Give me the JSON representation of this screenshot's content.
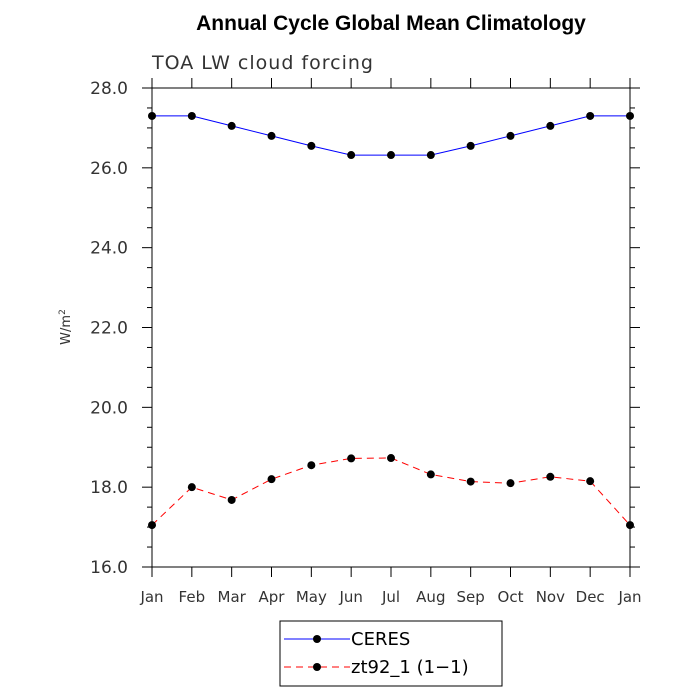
{
  "chart_data": {
    "type": "line",
    "title": "Annual Cycle Global Mean Climatology",
    "subtitle": "TOA LW cloud forcing",
    "ylabel": "W/m",
    "ylabel_sup": "2",
    "xlabel": "",
    "categories": [
      "Jan",
      "Feb",
      "Mar",
      "Apr",
      "May",
      "Jun",
      "Jul",
      "Aug",
      "Sep",
      "Oct",
      "Nov",
      "Dec",
      "Jan"
    ],
    "ylim": [
      16.0,
      28.0
    ],
    "yticks": [
      "16.0",
      "18.0",
      "20.0",
      "22.0",
      "24.0",
      "26.0",
      "28.0"
    ],
    "grid": false,
    "legend_position": "bottom",
    "series": [
      {
        "name": "CERES",
        "color": "#0000ff",
        "linestyle": "solid",
        "values": [
          27.3,
          27.3,
          27.05,
          26.8,
          26.55,
          26.32,
          26.32,
          26.32,
          26.55,
          26.8,
          27.05,
          27.3,
          27.3
        ]
      },
      {
        "name": "zt92_1 (1−1)",
        "color": "#ff0000",
        "linestyle": "dashed",
        "values": [
          17.05,
          18.0,
          17.68,
          18.2,
          18.55,
          18.72,
          18.73,
          18.32,
          18.14,
          18.1,
          18.26,
          18.15,
          17.05
        ]
      }
    ]
  }
}
